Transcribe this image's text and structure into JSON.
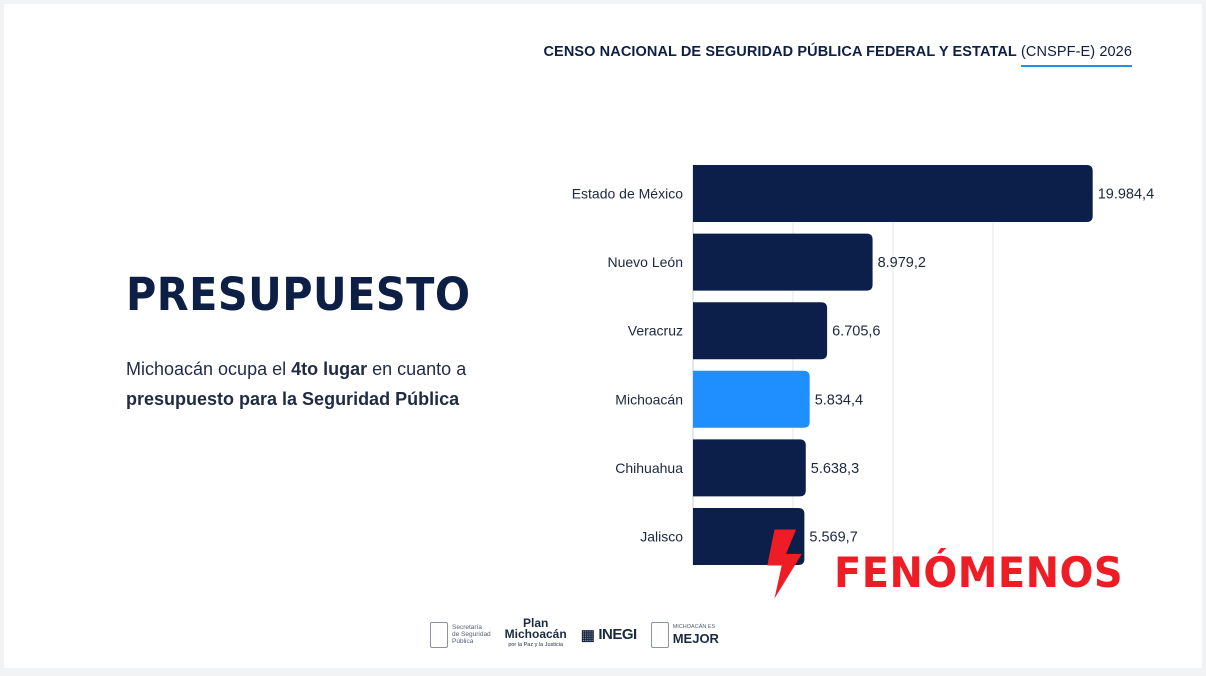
{
  "header": {
    "title_bold": "CENSO NACIONAL DE SEGURIDAD PÚBLICA FEDERAL Y ESTATAL",
    "acronym": "(CNSPF-E) 2026"
  },
  "main": {
    "title": "PRESUPUESTO",
    "desc_part1": "Michoacán ocupa el ",
    "desc_bold1": "4to lugar",
    "desc_part2": " en cuanto a ",
    "desc_bold2": "presupuesto para la Seguridad Pública"
  },
  "brand": {
    "name": "FENÓMENOS",
    "color": "#ee1c25"
  },
  "logos": {
    "sec_line1": "Secretaría",
    "sec_line2": "de Seguridad",
    "sec_line3": "Pública",
    "plan_line1": "Plan",
    "plan_line2": "Michoacán",
    "plan_line3": "por la Paz y la Justicia",
    "inegi": "INEGI",
    "mejor_small": "MICHOACÁN ES",
    "mejor": "MEJOR"
  },
  "chart_data": {
    "type": "bar",
    "orientation": "horizontal",
    "categories": [
      "Estado de México",
      "Nuevo León",
      "Veracruz",
      "Michoacán",
      "Chihuahua",
      "Jalisco"
    ],
    "values": [
      19984.4,
      8979.2,
      6705.6,
      5834.4,
      5638.3,
      5569.7
    ],
    "value_labels": [
      "19.984,4",
      "8.979,2",
      "6.705,6",
      "5.834,4",
      "5.638,3",
      "5.569,7"
    ],
    "highlight": "Michoacán",
    "colors": {
      "default": "#0c1f4a",
      "highlight": "#1f8fff",
      "grid": "#e3e6ec"
    },
    "xlim": [
      0,
      20000
    ],
    "grid": true,
    "gridlines": [
      5000,
      10000,
      15000
    ]
  }
}
